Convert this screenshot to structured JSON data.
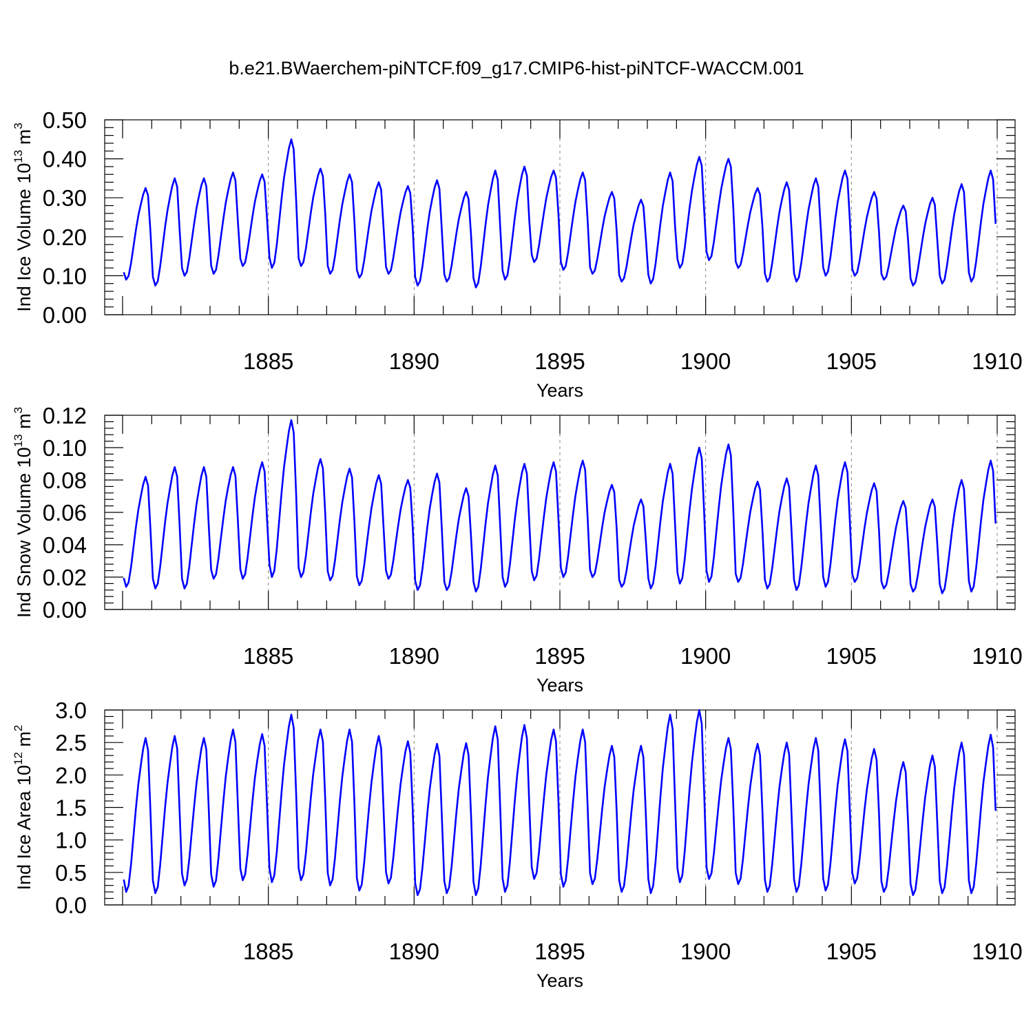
{
  "title": "b.e21.BWaerchem-piNTCF.f09_g17.CMIP6-hist-piNTCF-WACCM.001",
  "colors": {
    "line": "#0000ff",
    "axis": "#000000",
    "grid": "#808080",
    "background": "#ffffff"
  },
  "chart_data": [
    {
      "type": "line",
      "title": "b.e21.BWaerchem-piNTCF.f09_g17.CMIP6-hist-piNTCF-WACCM.001",
      "ylabel": "Ind Ice Volume",
      "ylabel_power": "10",
      "ylabel_exponent": "13",
      "ylabel_unit": "m",
      "ylabel_unit_exponent": "3",
      "xlabel": "Years",
      "xlim": [
        1880,
        1910
      ],
      "ylim": [
        0,
        0.5
      ],
      "xticks": [
        "1885",
        "1890",
        "1895",
        "1900",
        "1905",
        "1910"
      ],
      "yticks": [
        "0.00",
        "0.10",
        "0.20",
        "0.30",
        "0.40",
        "0.50"
      ],
      "grid": "vertical dashed at major x ticks",
      "series": [
        {
          "name": "Ind Ice Volume",
          "start_year": 1880.04,
          "step_years": 0.0833,
          "minima": [
            0.09,
            0.075,
            0.1,
            0.105,
            0.125,
            0.12,
            0.125,
            0.105,
            0.095,
            0.105,
            0.075,
            0.085,
            0.07,
            0.09,
            0.135,
            0.115,
            0.105,
            0.085,
            0.08,
            0.12,
            0.14,
            0.12,
            0.085,
            0.085,
            0.1,
            0.1,
            0.09,
            0.075,
            0.08,
            0.085
          ],
          "maxima": [
            0.325,
            0.35,
            0.35,
            0.365,
            0.36,
            0.45,
            0.375,
            0.36,
            0.34,
            0.33,
            0.345,
            0.315,
            0.37,
            0.38,
            0.37,
            0.365,
            0.315,
            0.295,
            0.365,
            0.405,
            0.4,
            0.325,
            0.34,
            0.35,
            0.37,
            0.315,
            0.28,
            0.3,
            0.335,
            0.37
          ]
        }
      ]
    },
    {
      "type": "line",
      "ylabel": "Ind Snow Volume",
      "ylabel_power": "10",
      "ylabel_exponent": "13",
      "ylabel_unit": "m",
      "ylabel_unit_exponent": "3",
      "xlabel": "Years",
      "xlim": [
        1880,
        1910
      ],
      "ylim": [
        0,
        0.12
      ],
      "xticks": [
        "1885",
        "1890",
        "1895",
        "1900",
        "1905",
        "1910"
      ],
      "yticks": [
        "0.00",
        "0.02",
        "0.04",
        "0.06",
        "0.08",
        "0.10",
        "0.12"
      ],
      "grid": "vertical dashed at major x ticks",
      "series": [
        {
          "name": "Ind Snow Volume",
          "start_year": 1880.04,
          "step_years": 0.0833,
          "minima": [
            0.014,
            0.013,
            0.013,
            0.019,
            0.019,
            0.02,
            0.02,
            0.018,
            0.015,
            0.019,
            0.012,
            0.012,
            0.011,
            0.014,
            0.018,
            0.02,
            0.02,
            0.014,
            0.013,
            0.016,
            0.017,
            0.017,
            0.013,
            0.012,
            0.014,
            0.017,
            0.013,
            0.011,
            0.01,
            0.011
          ],
          "maxima": [
            0.082,
            0.088,
            0.088,
            0.088,
            0.091,
            0.117,
            0.093,
            0.087,
            0.083,
            0.08,
            0.084,
            0.075,
            0.089,
            0.09,
            0.091,
            0.092,
            0.077,
            0.068,
            0.09,
            0.1,
            0.102,
            0.079,
            0.081,
            0.089,
            0.091,
            0.078,
            0.067,
            0.068,
            0.08,
            0.092
          ]
        }
      ]
    },
    {
      "type": "line",
      "ylabel": "Ind Ice Area",
      "ylabel_power": "10",
      "ylabel_exponent": "12",
      "ylabel_unit": "m",
      "ylabel_unit_exponent": "2",
      "xlabel": "Years",
      "xlim": [
        1880,
        1910
      ],
      "ylim": [
        0,
        3.0
      ],
      "xticks": [
        "1885",
        "1890",
        "1895",
        "1900",
        "1905",
        "1910"
      ],
      "yticks": [
        "0.0",
        "0.5",
        "1.0",
        "1.5",
        "2.0",
        "2.5",
        "3.0"
      ],
      "grid": "vertical dashed at major x ticks",
      "series": [
        {
          "name": "Ind Ice Area",
          "start_year": 1880.04,
          "step_years": 0.0833,
          "minima": [
            0.2,
            0.18,
            0.3,
            0.28,
            0.38,
            0.35,
            0.38,
            0.3,
            0.22,
            0.33,
            0.15,
            0.18,
            0.15,
            0.2,
            0.4,
            0.28,
            0.32,
            0.2,
            0.18,
            0.35,
            0.4,
            0.32,
            0.2,
            0.2,
            0.22,
            0.33,
            0.2,
            0.15,
            0.18,
            0.18
          ],
          "maxima": [
            2.57,
            2.6,
            2.57,
            2.7,
            2.63,
            2.93,
            2.7,
            2.7,
            2.6,
            2.52,
            2.48,
            2.49,
            2.75,
            2.77,
            2.7,
            2.7,
            2.45,
            2.45,
            2.93,
            3.0,
            2.57,
            2.48,
            2.5,
            2.57,
            2.55,
            2.4,
            2.2,
            2.3,
            2.5,
            2.62
          ]
        }
      ]
    }
  ]
}
